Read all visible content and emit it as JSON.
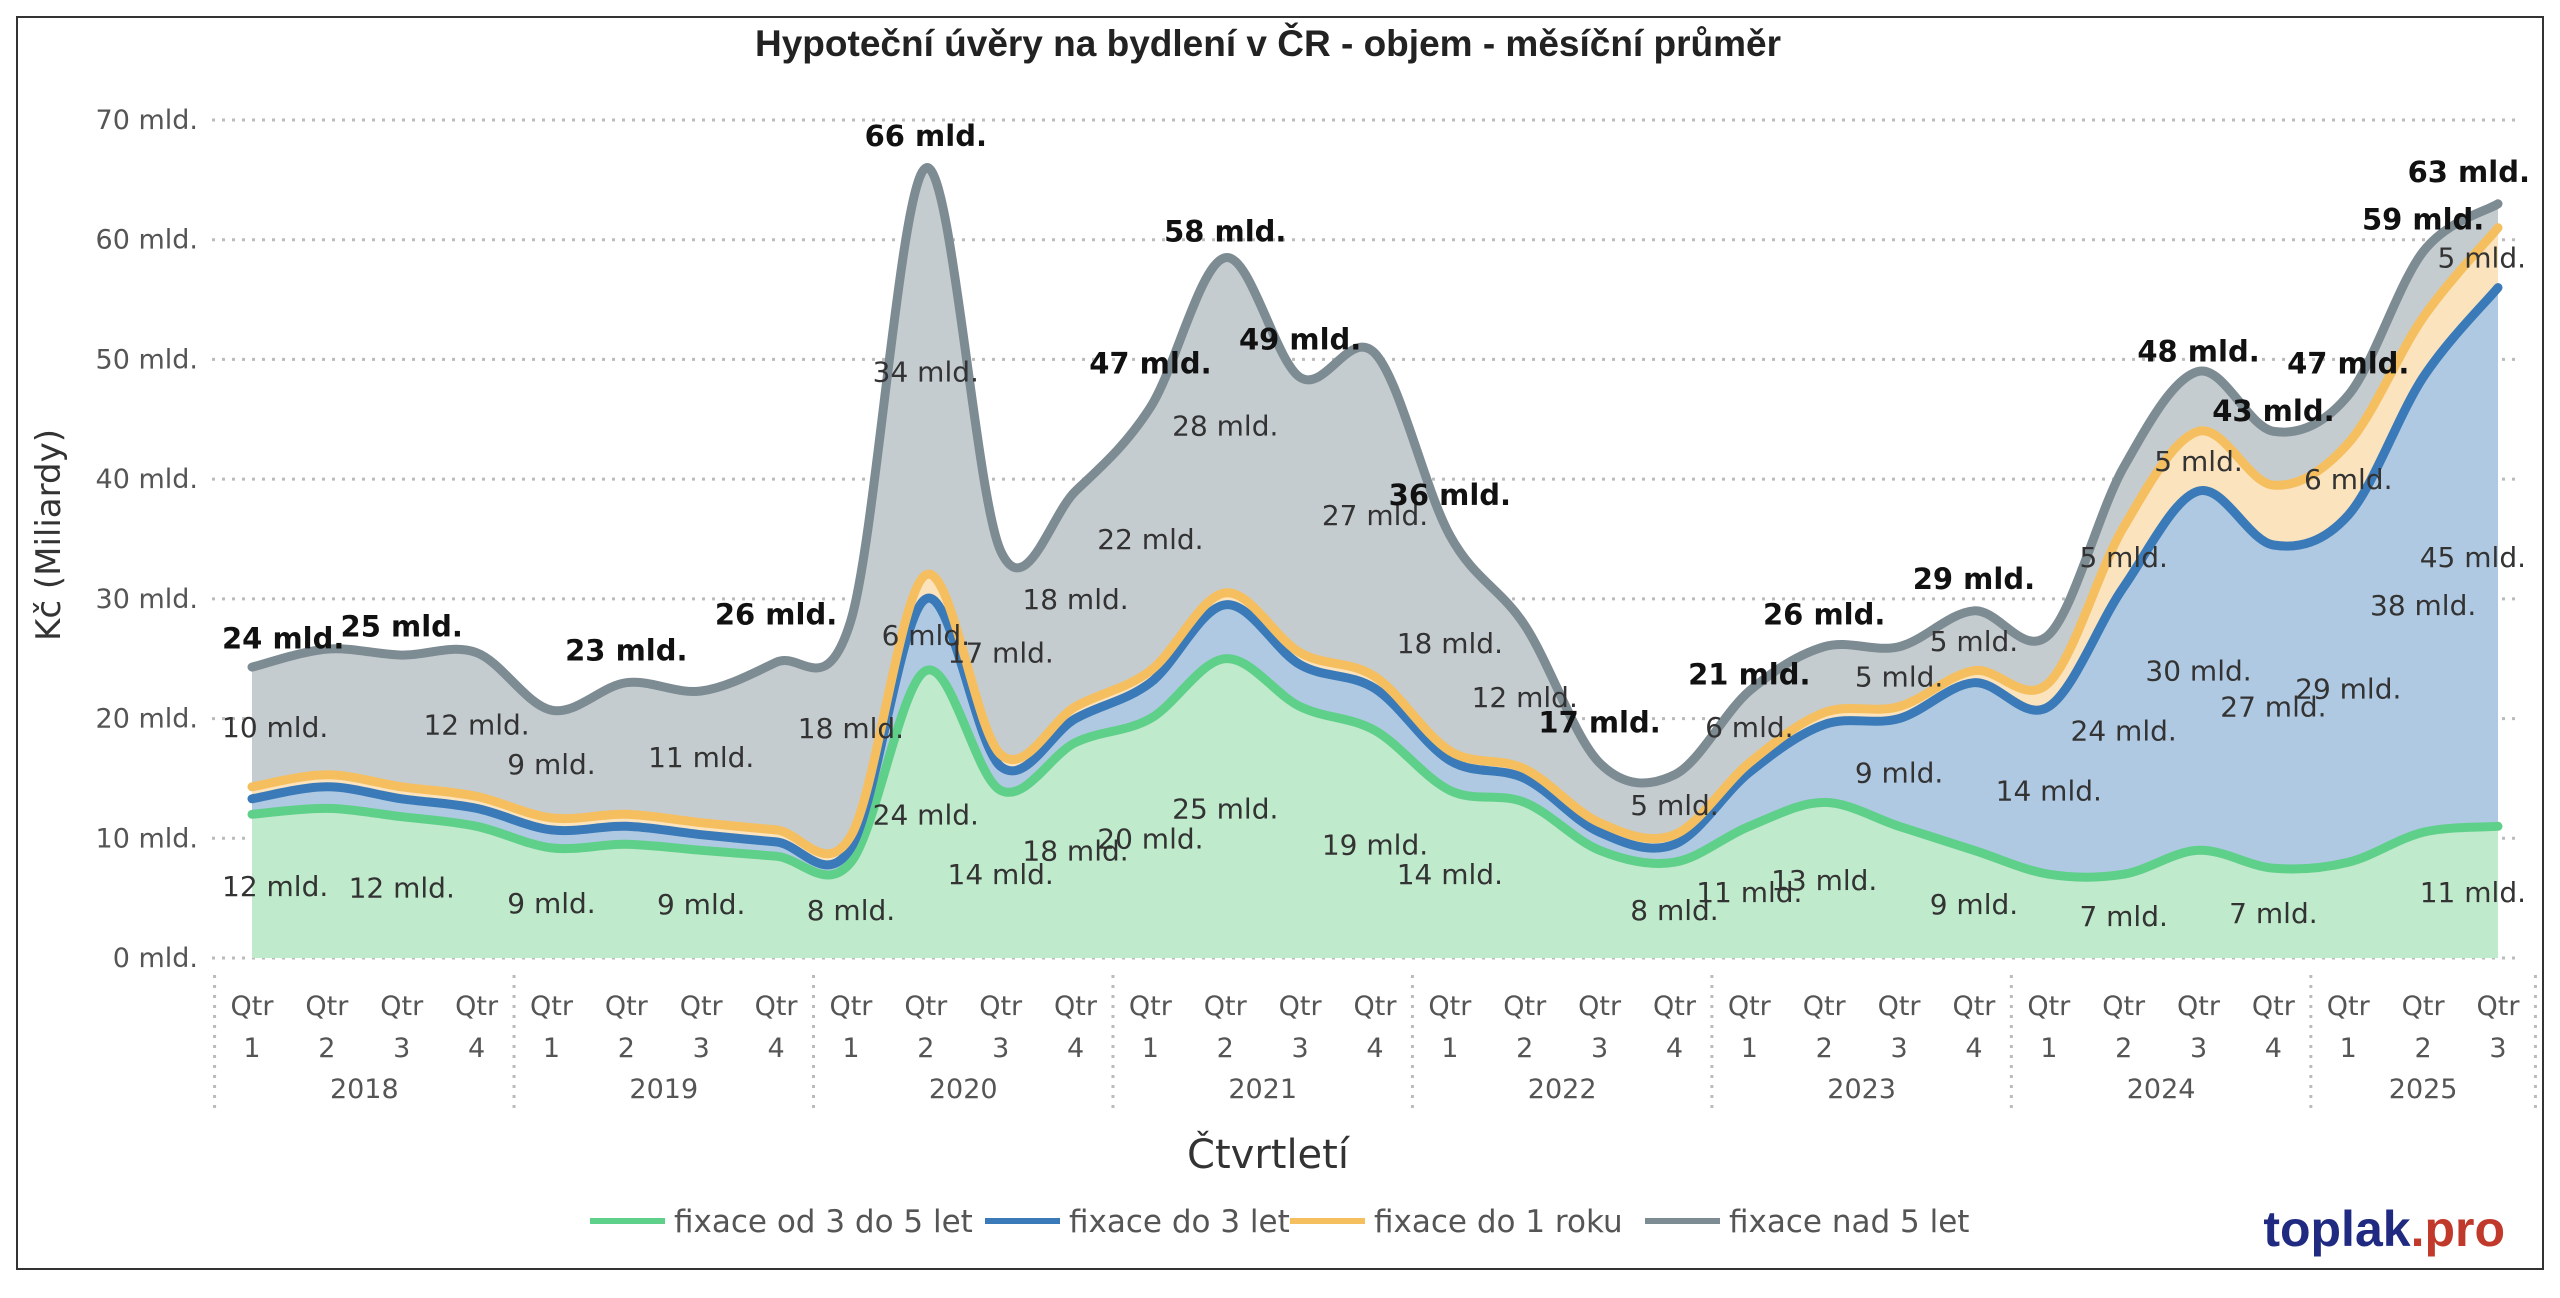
{
  "chart_data": {
    "type": "area",
    "title": "Hypoteční úvěry na bydlení v ČR - objem - měsíční průměr",
    "ylabel": "Kč (Miliardy)",
    "xlabel": "Čtvrtletí",
    "ylim": [
      0,
      70
    ],
    "yticks": [
      "0 mld.",
      "10 mld.",
      "20 mld.",
      "30 mld.",
      "40 mld.",
      "50 mld.",
      "60 mld.",
      "70 mld."
    ],
    "grid": true,
    "legend_position": "bottom",
    "quarter_labels": [
      [
        "Qtr",
        "1"
      ],
      [
        "Qtr",
        "2"
      ],
      [
        "Qtr",
        "3"
      ],
      [
        "Qtr",
        "4"
      ],
      [
        "Qtr",
        "1"
      ],
      [
        "Qtr",
        "2"
      ],
      [
        "Qtr",
        "3"
      ],
      [
        "Qtr",
        "4"
      ],
      [
        "Qtr",
        "1"
      ],
      [
        "Qtr",
        "2"
      ],
      [
        "Qtr",
        "3"
      ],
      [
        "Qtr",
        "4"
      ],
      [
        "Qtr",
        "1"
      ],
      [
        "Qtr",
        "2"
      ],
      [
        "Qtr",
        "3"
      ],
      [
        "Qtr",
        "4"
      ],
      [
        "Qtr",
        "1"
      ],
      [
        "Qtr",
        "2"
      ],
      [
        "Qtr",
        "3"
      ],
      [
        "Qtr",
        "4"
      ],
      [
        "Qtr",
        "1"
      ],
      [
        "Qtr",
        "2"
      ],
      [
        "Qtr",
        "3"
      ],
      [
        "Qtr",
        "4"
      ],
      [
        "Qtr",
        "1"
      ],
      [
        "Qtr",
        "2"
      ],
      [
        "Qtr",
        "3"
      ],
      [
        "Qtr",
        "4"
      ],
      [
        "Qtr",
        "1"
      ],
      [
        "Qtr",
        "2"
      ],
      [
        "Qtr",
        "3"
      ]
    ],
    "years": [
      "2018",
      "2019",
      "2020",
      "2021",
      "2022",
      "2023",
      "2024",
      "2025"
    ],
    "series": [
      {
        "name": "fixace od 3 do 5 let",
        "color": "#5fd08a",
        "fill": "#bfeacb",
        "values": [
          12,
          12.5,
          11.8,
          11,
          9.2,
          9.5,
          9,
          8.5,
          8,
          24,
          14,
          18,
          20,
          25,
          21,
          19,
          14,
          13,
          9,
          8,
          11,
          13,
          11,
          9,
          7,
          7,
          9,
          7.5,
          8,
          10.5,
          11
        ]
      },
      {
        "name": "fixace do 3 let",
        "color": "#3a7ab8",
        "fill": "#b0c9e2",
        "values": [
          1.3,
          1.8,
          1.5,
          1.5,
          1.5,
          1.5,
          1.3,
          1.2,
          1.2,
          6,
          2,
          2,
          3,
          4.5,
          3.5,
          3.5,
          2.5,
          2,
          1.5,
          1.5,
          4.5,
          6.5,
          9,
          14,
          14,
          24,
          30,
          27,
          29,
          38,
          45
        ]
      },
      {
        "name": "fixace do 1 roku",
        "color": "#f5bf5f",
        "fill": "#fbe3bd",
        "values": [
          1,
          1,
          1,
          1,
          1,
          1,
          1,
          1,
          1,
          2,
          1,
          1,
          1,
          1,
          1,
          1,
          0.8,
          0.8,
          0.8,
          0.8,
          0.8,
          1,
          1,
          1,
          2,
          5,
          5,
          5,
          6,
          5,
          5
        ]
      },
      {
        "name": "fixace nad 5 let",
        "color": "#7d8b93",
        "fill": "#c5ccd0",
        "values": [
          10,
          10.5,
          11,
          12,
          9,
          11,
          11,
          14,
          18,
          34,
          17,
          18,
          22,
          28,
          23,
          27,
          18,
          12,
          5,
          5,
          6,
          5.5,
          5,
          5,
          4,
          5,
          5,
          4.5,
          4,
          5.5,
          2
        ]
      }
    ],
    "totals": [
      24,
      25.8,
      25,
      26,
      21,
      23,
      22,
      26,
      27.5,
      66,
      34,
      39,
      47,
      58,
      49,
      51,
      36,
      28,
      17,
      15,
      21,
      26,
      26,
      29,
      27,
      41,
      48,
      43,
      47,
      59,
      63
    ],
    "data_labels": [
      {
        "series": "fixace od 3 do 5 let",
        "i": 0,
        "text": "12 mld."
      },
      {
        "series": "fixace od 3 do 5 let",
        "i": 2,
        "text": "12 mld."
      },
      {
        "series": "fixace od 3 do 5 let",
        "i": 4,
        "text": "9 mld."
      },
      {
        "series": "fixace od 3 do 5 let",
        "i": 6,
        "text": "9 mld."
      },
      {
        "series": "fixace od 3 do 5 let",
        "i": 8,
        "text": "8 mld."
      },
      {
        "series": "fixace od 3 do 5 let",
        "i": 9,
        "text": "24 mld."
      },
      {
        "series": "fixace od 3 do 5 let",
        "i": 10,
        "text": "14 mld."
      },
      {
        "series": "fixace od 3 do 5 let",
        "i": 11,
        "text": "18 mld."
      },
      {
        "series": "fixace od 3 do 5 let",
        "i": 12,
        "text": "20 mld."
      },
      {
        "series": "fixace od 3 do 5 let",
        "i": 13,
        "text": "25 mld."
      },
      {
        "series": "fixace od 3 do 5 let",
        "i": 15,
        "text": "19 mld."
      },
      {
        "series": "fixace od 3 do 5 let",
        "i": 16,
        "text": "14 mld."
      },
      {
        "series": "fixace od 3 do 5 let",
        "i": 19,
        "text": "8 mld."
      },
      {
        "series": "fixace od 3 do 5 let",
        "i": 20,
        "text": "11 mld."
      },
      {
        "series": "fixace od 3 do 5 let",
        "i": 21,
        "text": "13 mld."
      },
      {
        "series": "fixace od 3 do 5 let",
        "i": 23,
        "text": "9 mld."
      },
      {
        "series": "fixace od 3 do 5 let",
        "i": 25,
        "text": "7 mld."
      },
      {
        "series": "fixace od 3 do 5 let",
        "i": 27,
        "text": "7 mld."
      },
      {
        "series": "fixace od 3 do 5 let",
        "i": 30,
        "text": "11 mld."
      },
      {
        "series": "fixace do 3 let",
        "i": 9,
        "text": "6 mld."
      },
      {
        "series": "fixace do 3 let",
        "i": 22,
        "text": "9 mld."
      },
      {
        "series": "fixace do 3 let",
        "i": 24,
        "text": "14 mld."
      },
      {
        "series": "fixace do 3 let",
        "i": 25,
        "text": "24 mld."
      },
      {
        "series": "fixace do 3 let",
        "i": 26,
        "text": "30 mld."
      },
      {
        "series": "fixace do 3 let",
        "i": 27,
        "text": "27 mld."
      },
      {
        "series": "fixace do 3 let",
        "i": 28,
        "text": "29 mld."
      },
      {
        "series": "fixace do 3 let",
        "i": 29,
        "text": "38 mld."
      },
      {
        "series": "fixace do 3 let",
        "i": 30,
        "text": "45 mld."
      },
      {
        "series": "fixace do 1 roku",
        "i": 25,
        "text": "5 mld."
      },
      {
        "series": "fixace do 1 roku",
        "i": 26,
        "text": "5 mld."
      },
      {
        "series": "fixace do 1 roku",
        "i": 28,
        "text": "6 mld."
      },
      {
        "series": "fixace do 1 roku",
        "i": 30,
        "text": "5 mld."
      },
      {
        "series": "fixace nad 5 let",
        "i": 0,
        "text": "10 mld."
      },
      {
        "series": "fixace nad 5 let",
        "i": 3,
        "text": "12 mld."
      },
      {
        "series": "fixace nad 5 let",
        "i": 4,
        "text": "9 mld."
      },
      {
        "series": "fixace nad 5 let",
        "i": 6,
        "text": "11 mld."
      },
      {
        "series": "fixace nad 5 let",
        "i": 8,
        "text": "18 mld."
      },
      {
        "series": "fixace nad 5 let",
        "i": 9,
        "text": "34 mld."
      },
      {
        "series": "fixace nad 5 let",
        "i": 10,
        "text": "17 mld."
      },
      {
        "series": "fixace nad 5 let",
        "i": 11,
        "text": "18 mld."
      },
      {
        "series": "fixace nad 5 let",
        "i": 12,
        "text": "22 mld."
      },
      {
        "series": "fixace nad 5 let",
        "i": 13,
        "text": "28 mld."
      },
      {
        "series": "fixace nad 5 let",
        "i": 15,
        "text": "27 mld."
      },
      {
        "series": "fixace nad 5 let",
        "i": 16,
        "text": "18 mld."
      },
      {
        "series": "fixace nad 5 let",
        "i": 17,
        "text": "12 mld."
      },
      {
        "series": "fixace nad 5 let",
        "i": 19,
        "text": "5 mld."
      },
      {
        "series": "fixace nad 5 let",
        "i": 20,
        "text": "6 mld."
      },
      {
        "series": "fixace nad 5 let",
        "i": 22,
        "text": "5 mld."
      },
      {
        "series": "fixace nad 5 let",
        "i": 23,
        "text": "5 mld."
      }
    ],
    "total_labels": [
      {
        "i": 0,
        "text": "24 mld."
      },
      {
        "i": 2,
        "text": "25 mld."
      },
      {
        "i": 5,
        "text": "23 mld."
      },
      {
        "i": 7,
        "text": "26 mld."
      },
      {
        "i": 9,
        "text": "66 mld."
      },
      {
        "i": 12,
        "text": "47 mld."
      },
      {
        "i": 13,
        "text": "58 mld."
      },
      {
        "i": 14,
        "text": "49 mld."
      },
      {
        "i": 16,
        "text": "36 mld."
      },
      {
        "i": 18,
        "text": "17 mld."
      },
      {
        "i": 20,
        "text": "21 mld."
      },
      {
        "i": 21,
        "text": "26 mld."
      },
      {
        "i": 23,
        "text": "29 mld."
      },
      {
        "i": 26,
        "text": "48 mld."
      },
      {
        "i": 27,
        "text": "43 mld."
      },
      {
        "i": 28,
        "text": "47 mld."
      },
      {
        "i": 29,
        "text": "59 mld."
      },
      {
        "i": 30,
        "text": "63 mld."
      }
    ]
  },
  "brand": {
    "name": "toplak",
    "suffix": ".pro",
    "name_color": "#1f2a80",
    "suffix_color": "#c0392b"
  }
}
